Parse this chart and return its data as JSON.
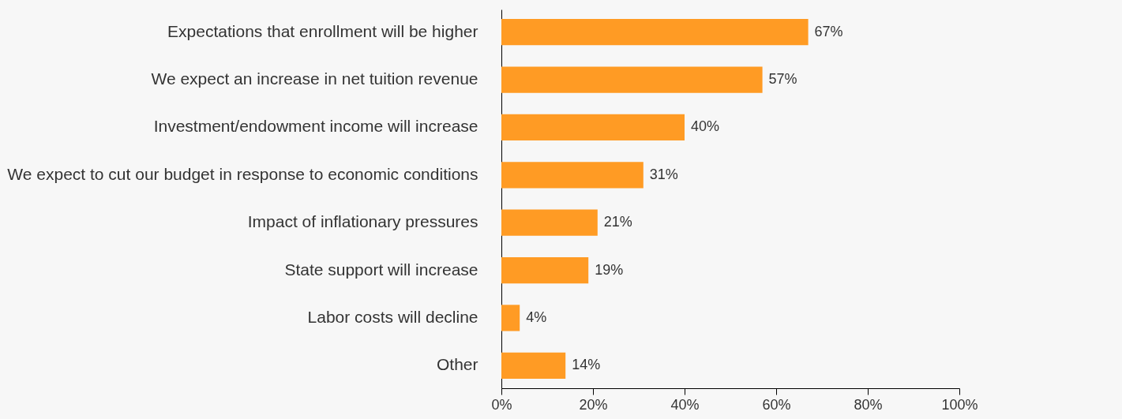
{
  "chart_data": {
    "type": "bar",
    "orientation": "horizontal",
    "categories": [
      "Expectations that enrollment will be higher",
      "We expect an increase in net tuition revenue",
      "Investment/endowment income will increase",
      "We expect to cut our budget in response to economic conditions",
      "Impact of inflationary pressures",
      "State support will increase",
      "Labor costs will decline",
      "Other"
    ],
    "values": [
      67,
      57,
      40,
      31,
      21,
      19,
      4,
      14
    ],
    "value_labels": [
      "67%",
      "57%",
      "40%",
      "31%",
      "21%",
      "19%",
      "4%",
      "14%"
    ],
    "color": "#ff9b24",
    "xlim": [
      0,
      100
    ],
    "xticks": [
      {
        "value": 0,
        "label": "0%"
      },
      {
        "value": 20,
        "label": "20%"
      },
      {
        "value": 40,
        "label": "40%"
      },
      {
        "value": 60,
        "label": "60%"
      },
      {
        "value": 80,
        "label": "80%"
      },
      {
        "value": 100,
        "label": "100%"
      }
    ],
    "grid": false
  }
}
